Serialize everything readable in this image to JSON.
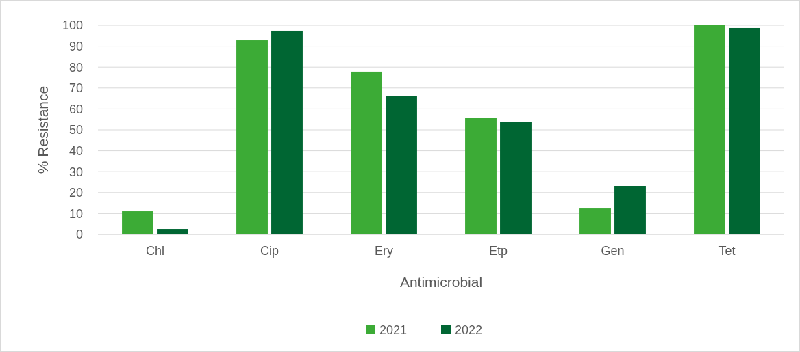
{
  "chart_data": {
    "type": "bar",
    "xlabel": "Antimicrobial",
    "ylabel": "% Resistance",
    "categories": [
      "Chl",
      "Cip",
      "Ery",
      "Etp",
      "Gen",
      "Tet"
    ],
    "series": [
      {
        "name": "2021",
        "color": "#3cab36",
        "values": [
          11.1,
          92.8,
          77.8,
          55.6,
          12.4,
          100
        ]
      },
      {
        "name": "2022",
        "color": "#006633",
        "values": [
          2.6,
          97.4,
          66.3,
          53.9,
          23.2,
          98.7
        ]
      }
    ],
    "ylim": [
      0,
      100
    ],
    "yticks": [
      0,
      10,
      20,
      30,
      40,
      50,
      60,
      70,
      80,
      90,
      100
    ],
    "grid": "y",
    "legend": "bottom"
  }
}
